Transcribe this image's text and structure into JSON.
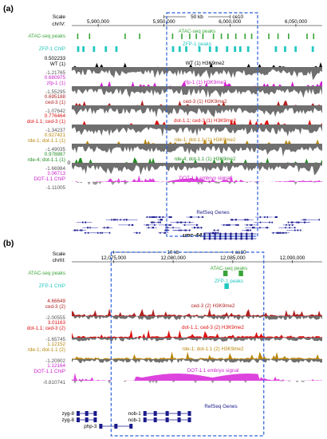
{
  "panelA": {
    "letter": "(a)",
    "scale_label": "Scale",
    "chrom_label": "chrIV:",
    "scalebar_text": "50 kb",
    "assembly": "ce10",
    "coords": [
      "5,900,000",
      "5,950,000",
      "6,000,000",
      "6,050,000"
    ],
    "window": [
      5880000,
      6070000
    ],
    "highlight": [
      5952000,
      6021000
    ],
    "annot_tracks": [
      {
        "left": "ATAC-seq peaks",
        "center": "ATAC-seq peaks",
        "color": "#3aa53a",
        "kind": "peaks",
        "marks": [
          5884000,
          5893000,
          5920000,
          5931000,
          5956000,
          5963000,
          5969000,
          5974000,
          5979000,
          5987000,
          5993000,
          5998000,
          6004000,
          6011000,
          6016000,
          6029000,
          6036000,
          6044000,
          6058000,
          6063000
        ]
      },
      {
        "left": "ZFP-1 ChIP",
        "center": "ZFP-1 peaks",
        "color": "#20c8c0",
        "kind": "blocks",
        "marks": [
          5884000,
          5888000,
          5896000,
          5905000,
          5913000,
          5956000,
          5961000,
          5966000,
          5976000,
          5984000,
          5989000,
          5997000,
          6003000,
          6007000,
          6013000,
          6034000,
          6041000,
          6049000,
          6062000
        ]
      }
    ],
    "tracks": [
      {
        "left": "WT (1)",
        "center": "WT (1) H3K9me2",
        "top_val": "0.502233",
        "bottom_val": "-1.21765",
        "color": "#6f6f6f",
        "pos_color": "#000000",
        "left_color": "#000000",
        "top_color": "#000000",
        "center_color": "#000000",
        "seed": 11
      },
      {
        "left": "zfp-1 (1)",
        "center": "zfp-1 (1) H3K9me2",
        "top_val": "0.680975",
        "bottom_val": "-1.55295",
        "color": "#6f6f6f",
        "pos_color": "#cc22cc",
        "left_color": "#cc22cc",
        "top_color": "#cc22cc",
        "center_color": "#cc22cc",
        "seed": 23
      },
      {
        "left": "ced-3 (1)",
        "center": "ced-3 (1) H3K9me2",
        "top_val": "0.695188",
        "bottom_val": "-1.07642",
        "color": "#6f6f6f",
        "pos_color": "#b22222",
        "left_color": "#b22222",
        "top_color": "#b22222",
        "center_color": "#b22222",
        "seed": 37
      },
      {
        "left": "dot-1.1; ced-3 (1)",
        "center": "dot-1.1; ced-3 (1) H3K9me2",
        "top_val": "0.776464",
        "bottom_val": "-1.34237",
        "color": "#6f6f6f",
        "pos_color": "#dd1111",
        "left_color": "#dd1111",
        "top_color": "#dd1111",
        "center_color": "#dd1111",
        "seed": 41
      },
      {
        "left": "rde-1; dot-1.1 (1)",
        "center": "rde-1; dot-1.1 (1) H3K9me2",
        "top_val": "0.927421",
        "bottom_val": "-1.49035",
        "color": "#6f6f6f",
        "pos_color": "#b8860b",
        "left_color": "#b8860b",
        "top_color": "#b8860b",
        "center_color": "#b8860b",
        "seed": 53
      },
      {
        "left": "rde-4; dot-1.1 (1)",
        "center": "rde-4; dot-1.1 (1) H3K9me2",
        "top_val": "0.978887",
        "bottom_val": "-1.66984",
        "color": "#6f6f6f",
        "pos_color": "#228b22",
        "left_color": "#228b22",
        "top_color": "#228b22",
        "center_color": "#228b22",
        "seed": 67,
        "zero_label": "0"
      },
      {
        "left": "DOT-1.1 ChIP",
        "center": "DOT-1.1 embryo signal",
        "top_val": "3.06713",
        "bottom_val": "-1.11005",
        "color": "#dd44dd",
        "pos_color": "#dd44dd",
        "left_color": "#cc22cc",
        "top_color": "#cc22cc",
        "center_color": "#cc22cc",
        "seed": 79,
        "kind": "chip"
      }
    ],
    "refseq": {
      "title": "RefSeq Genes",
      "gene": "unc-44",
      "gene_span": [
        5980000,
        6020000
      ]
    }
  },
  "panelB": {
    "letter": "(b)",
    "scale_label": "Scale",
    "chrom_label": "chrIII:",
    "scalebar_text": "10 kb",
    "assembly": "ce10",
    "coords": [
      "12,075,000",
      "12,080,000",
      "12,085,000",
      "12,090,000"
    ],
    "window": [
      12071500,
      12092500
    ],
    "highlight": [
      12074800,
      12087600
    ],
    "annot_tracks": [
      {
        "left": "ATAC-seq peaks",
        "center": "ATAC-seq peaks",
        "color": "#3aa53a",
        "kind": "blocks",
        "marks": [
          12084200,
          12085500
        ]
      },
      {
        "left": "ZFP-1 ChIP",
        "center": "ZFP-1 peaks",
        "color": "#20c8c0",
        "kind": "blocks",
        "marks": [
          12084300
        ]
      }
    ],
    "tracks": [
      {
        "left": "ced-3 (2)",
        "center": "ced-3 (2) H3K9me2",
        "top_val": "4.66649",
        "bottom_val": "-2.00555",
        "color": "#6f6f6f",
        "pos_color": "#b22222",
        "left_color": "#b22222",
        "top_color": "#b22222",
        "center_color": "#b22222",
        "seed": 91
      },
      {
        "left": "dot-1.1; ced-3 (2)",
        "center": "dot-1.1; ced-3 (2) H3K9me2",
        "top_val": "3.01163",
        "bottom_val": "-1.65745",
        "color": "#6f6f6f",
        "pos_color": "#dd1111",
        "left_color": "#dd1111",
        "top_color": "#dd1111",
        "center_color": "#dd1111",
        "seed": 103
      },
      {
        "left": "rde-1; dot-1.1 (2)",
        "center": "rde-1; dot-1.1 (2) H3K9me2",
        "top_val": "1.12152",
        "bottom_val": "-1.20902",
        "color": "#6f6f6f",
        "pos_color": "#b8860b",
        "left_color": "#b8860b",
        "top_color": "#b8860b",
        "center_color": "#b8860b",
        "seed": 113
      },
      {
        "left": "DOT-1.1 ChIP",
        "center": "DOT-1.1 embryo signal",
        "top_val": "1.12164",
        "bottom_val": "-0.810741",
        "color": "#dd44dd",
        "pos_color": "#dd44dd",
        "left_color": "#cc22cc",
        "top_color": "#cc22cc",
        "center_color": "#cc22cc",
        "seed": 127,
        "kind": "chip"
      }
    ],
    "refseq": {
      "title": "RefSeq Genes",
      "genes": [
        {
          "name": "zyg-8",
          "start": 12071900,
          "end": 12073600,
          "lane": 0
        },
        {
          "name": "zyg-8",
          "start": 12071900,
          "end": 12073600,
          "lane": 1
        },
        {
          "name": "nob-1",
          "start": 12077500,
          "end": 12081500,
          "lane": 0
        },
        {
          "name": "nob-1",
          "start": 12077500,
          "end": 12081500,
          "lane": 1
        },
        {
          "name": "php-3",
          "start": 12073800,
          "end": 12076600,
          "lane": 2
        }
      ]
    }
  }
}
